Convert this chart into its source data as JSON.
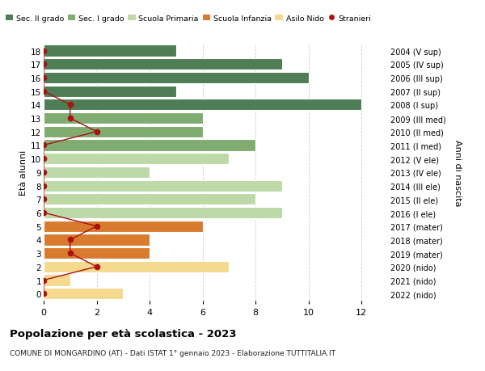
{
  "ages": [
    18,
    17,
    16,
    15,
    14,
    13,
    12,
    11,
    10,
    9,
    8,
    7,
    6,
    5,
    4,
    3,
    2,
    1,
    0
  ],
  "right_labels": [
    "2004 (V sup)",
    "2005 (IV sup)",
    "2006 (III sup)",
    "2007 (II sup)",
    "2008 (I sup)",
    "2009 (III med)",
    "2010 (II med)",
    "2011 (I med)",
    "2012 (V ele)",
    "2013 (IV ele)",
    "2014 (III ele)",
    "2015 (II ele)",
    "2016 (I ele)",
    "2017 (mater)",
    "2018 (mater)",
    "2019 (mater)",
    "2020 (nido)",
    "2021 (nido)",
    "2022 (nido)"
  ],
  "bar_values": [
    5,
    9,
    10,
    5,
    12,
    6,
    6,
    8,
    7,
    4,
    9,
    8,
    9,
    6,
    4,
    4,
    7,
    1,
    3
  ],
  "bar_colors": [
    "#4e7d56",
    "#4e7d56",
    "#4e7d56",
    "#4e7d56",
    "#4e7d56",
    "#80ac72",
    "#80ac72",
    "#80ac72",
    "#bdd9a8",
    "#bdd9a8",
    "#bdd9a8",
    "#bdd9a8",
    "#bdd9a8",
    "#d97b2e",
    "#d97b2e",
    "#d97b2e",
    "#f5d98e",
    "#f5d98e",
    "#f5d98e"
  ],
  "bar_colors_alt": [
    "#5a8f63",
    "#5a8f63",
    "#5a8f63",
    "#5a8f63",
    "#5a8f63",
    "#8fba80",
    "#8fba80",
    "#8fba80",
    "#cae3b5",
    "#cae3b5",
    "#cae3b5",
    "#cae3b5",
    "#cae3b5",
    "#e08e40",
    "#e08e40",
    "#e08e40",
    "#f8e4a8",
    "#f8e4a8",
    "#f8e4a8"
  ],
  "stranieri_x": [
    0,
    0,
    0,
    0,
    1,
    1,
    2,
    0,
    0,
    0,
    0,
    0,
    0,
    2,
    1,
    1,
    2,
    0,
    0
  ],
  "legend_labels": [
    "Sec. II grado",
    "Sec. I grado",
    "Scuola Primaria",
    "Scuola Infanzia",
    "Asilo Nido",
    "Stranieri"
  ],
  "legend_colors": [
    "#4e7d56",
    "#80ac72",
    "#bdd9a8",
    "#d97b2e",
    "#f5d98e",
    "#aa1111"
  ],
  "title": "Popolazione per età scolastica - 2023",
  "subtitle": "COMUNE DI MONGARDINO (AT) - Dati ISTAT 1° gennaio 2023 - Elaborazione TUTTITALIA.IT",
  "ylabel_left": "Età alunni",
  "ylabel_right": "Anni di nascita",
  "xlim": [
    0,
    13
  ],
  "ylim": [
    -0.5,
    18.5
  ],
  "xticks": [
    0,
    2,
    4,
    6,
    8,
    10,
    12
  ],
  "bg_color": "#ffffff",
  "bar_height": 0.85,
  "grid_color": "#cccccc"
}
